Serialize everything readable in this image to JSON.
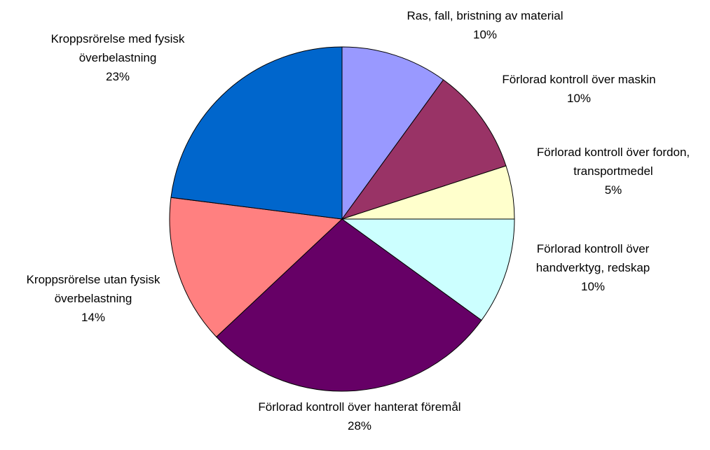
{
  "chart_data": {
    "type": "pie",
    "categories": [
      "Ras, fall, bristning av material",
      "Förlorad kontroll över maskin",
      "Förlorad kontroll över fordon, transportmedel",
      "Förlorad kontroll över handverktyg, redskap",
      "Förlorad kontroll över hanterat föremål",
      "Kroppsrörelse utan fysisk överbelastning",
      "Kroppsrörelse med fysisk överbelastning"
    ],
    "values": [
      10,
      10,
      5,
      10,
      28,
      14,
      23
    ],
    "value_labels": [
      "10%",
      "10%",
      "5%",
      "10%",
      "28%",
      "14%",
      "23%"
    ],
    "colors": [
      "#9999ff",
      "#993366",
      "#ffffcc",
      "#ccffff",
      "#660066",
      "#ff8080",
      "#0066cc"
    ]
  }
}
